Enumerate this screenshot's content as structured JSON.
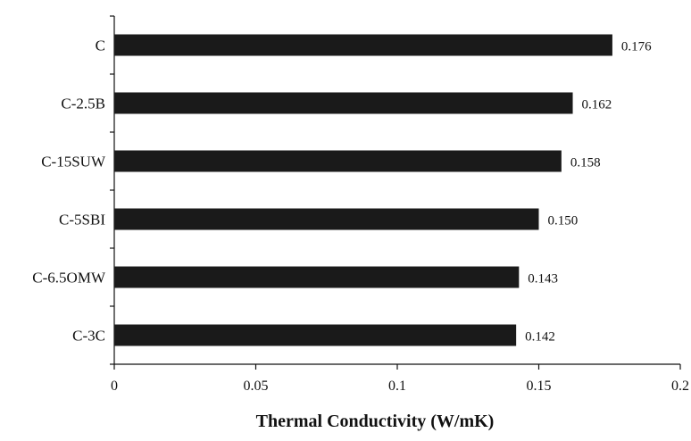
{
  "chart_data": {
    "type": "bar",
    "orientation": "horizontal",
    "categories": [
      "C",
      "C-2.5B",
      "C-15SUW",
      "C-5SBI",
      "C-6.5OMW",
      "C-3C"
    ],
    "values": [
      0.176,
      0.162,
      0.158,
      0.15,
      0.143,
      0.142
    ],
    "value_labels": [
      "0.176",
      "0.162",
      "0.158",
      "0.150",
      "0.143",
      "0.142"
    ],
    "xlabel": "Thermal  Conductivity (W/mK)",
    "ylabel": "",
    "xlim": [
      0,
      0.2
    ],
    "xticks": [
      0,
      0.05,
      0.1,
      0.15,
      0.2
    ],
    "xtick_labels": [
      "0",
      "0.05",
      "0.1",
      "0.15",
      "0.2"
    ],
    "grid": false,
    "bar_color": "#1a1a1a"
  }
}
